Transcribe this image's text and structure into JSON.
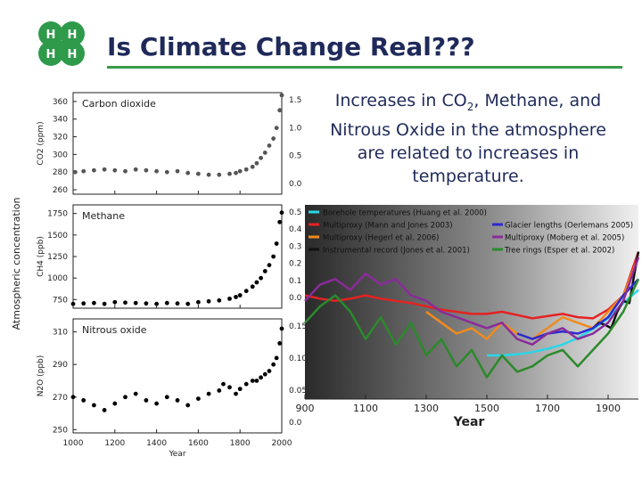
{
  "slide": {
    "title": "Is Climate Change Real???",
    "caption_part1": "Increases in CO",
    "caption_sub": "2",
    "caption_part2": ", Methane, and Nitrous Oxide in the atmosphere are related to increases in temperature."
  },
  "colors": {
    "title": "#1f2a5a",
    "rule": "#3a9a4a",
    "logo": "#2e9a4a"
  },
  "icons": [
    "clover-logo"
  ],
  "chart_data": [
    {
      "type": "scatter",
      "ylabel_shared": "Atmospheric concentration",
      "xlabel": "Year",
      "x_ticks": [
        "1000",
        "1200",
        "1400",
        "1600",
        "1800",
        "2000"
      ],
      "xlim": [
        1000,
        2000
      ],
      "panels": [
        {
          "name": "Carbon dioxide",
          "ylabel": "CO2 (ppm)",
          "ylim": [
            255,
            370
          ],
          "y_ticks": [
            "360",
            "340",
            "320",
            "300",
            "280",
            "260"
          ],
          "right_ticks": [
            "1.5",
            "1.0",
            "0.5",
            "0.0"
          ],
          "x": [
            1010,
            1050,
            1100,
            1150,
            1200,
            1250,
            1300,
            1350,
            1400,
            1450,
            1500,
            1550,
            1600,
            1650,
            1700,
            1750,
            1780,
            1800,
            1830,
            1860,
            1880,
            1900,
            1920,
            1940,
            1960,
            1975,
            1990,
            2000
          ],
          "values": [
            280,
            281,
            282,
            283,
            282,
            281,
            283,
            282,
            281,
            280,
            281,
            279,
            278,
            277,
            277,
            278,
            279,
            281,
            283,
            286,
            290,
            296,
            302,
            310,
            318,
            330,
            350,
            367
          ]
        },
        {
          "name": "Methane",
          "ylabel": "CH4 (ppb)",
          "ylim": [
            650,
            1850
          ],
          "y_ticks": [
            "1750",
            "1500",
            "1250",
            "1000",
            "750"
          ],
          "right_ticks": [
            "0.5",
            "0.4",
            "0.3",
            "0.2",
            "0.1",
            "0.0"
          ],
          "x": [
            1000,
            1050,
            1100,
            1150,
            1200,
            1250,
            1300,
            1350,
            1400,
            1450,
            1500,
            1550,
            1600,
            1650,
            1700,
            1750,
            1780,
            1800,
            1830,
            1860,
            1880,
            1900,
            1920,
            1940,
            1960,
            1975,
            1990,
            2000
          ],
          "values": [
            700,
            705,
            710,
            700,
            720,
            715,
            710,
            705,
            700,
            710,
            705,
            700,
            720,
            730,
            740,
            760,
            780,
            800,
            850,
            900,
            950,
            1000,
            1080,
            1150,
            1250,
            1400,
            1650,
            1760
          ]
        },
        {
          "name": "Nitrous oxide",
          "ylabel": "N2O (ppb)",
          "ylim": [
            248,
            318
          ],
          "y_ticks": [
            "310",
            "290",
            "270",
            "250"
          ],
          "right_ticks": [
            "0.15",
            "0.10",
            "0.05",
            "0.0"
          ],
          "x": [
            1000,
            1050,
            1100,
            1150,
            1200,
            1250,
            1300,
            1350,
            1400,
            1450,
            1500,
            1550,
            1600,
            1650,
            1700,
            1720,
            1750,
            1780,
            1800,
            1830,
            1860,
            1880,
            1900,
            1920,
            1940,
            1960,
            1975,
            1990,
            2000
          ],
          "values": [
            270,
            268,
            265,
            262,
            266,
            270,
            272,
            268,
            266,
            270,
            268,
            265,
            269,
            272,
            274,
            278,
            276,
            272,
            275,
            278,
            280,
            280,
            282,
            284,
            286,
            290,
            294,
            303,
            312
          ]
        }
      ]
    },
    {
      "type": "line",
      "xlabel": "Year",
      "x_ticks": [
        "900",
        "1100",
        "1300",
        "1500",
        "1700",
        "1900"
      ],
      "xlim": [
        900,
        2000
      ],
      "ylim": [
        -1.0,
        0.6
      ],
      "legend_position": "top",
      "series": [
        {
          "name": "Borehole temperatures (Huang et al. 2000)",
          "color": "#29d6e8",
          "x": [
            1500,
            1550,
            1600,
            1650,
            1700,
            1750,
            1800,
            1850,
            1900,
            1950,
            2000
          ],
          "values": [
            -0.6,
            -0.6,
            -0.59,
            -0.57,
            -0.54,
            -0.5,
            -0.44,
            -0.36,
            -0.26,
            -0.12,
            0.0
          ]
        },
        {
          "name": "Multiproxy (Mann and Jones 2003)",
          "color": "#e52222",
          "x": [
            900,
            950,
            1000,
            1050,
            1100,
            1150,
            1200,
            1250,
            1300,
            1350,
            1400,
            1450,
            1500,
            1550,
            1600,
            1650,
            1700,
            1750,
            1800,
            1850,
            1900,
            1950,
            2000
          ],
          "values": [
            -0.05,
            -0.08,
            -0.1,
            -0.08,
            -0.05,
            -0.08,
            -0.1,
            -0.12,
            -0.15,
            -0.18,
            -0.2,
            -0.22,
            -0.22,
            -0.2,
            -0.23,
            -0.26,
            -0.24,
            -0.22,
            -0.25,
            -0.26,
            -0.18,
            -0.05,
            0.35
          ]
        },
        {
          "name": "Multiproxy (Hegerl et al. 2006)",
          "color": "#f08a1e",
          "x": [
            1300,
            1350,
            1400,
            1450,
            1500,
            1550,
            1600,
            1650,
            1700,
            1750,
            1800,
            1850,
            1900,
            1950,
            2000
          ],
          "values": [
            -0.2,
            -0.3,
            -0.4,
            -0.35,
            -0.45,
            -0.3,
            -0.4,
            -0.45,
            -0.35,
            -0.25,
            -0.3,
            -0.35,
            -0.2,
            -0.05,
            0.3
          ]
        },
        {
          "name": "Instrumental record (Jones et al. 2001)",
          "color": "#111111",
          "x": [
            1850,
            1870,
            1890,
            1910,
            1930,
            1950,
            1970,
            1990,
            2000
          ],
          "values": [
            -0.35,
            -0.3,
            -0.32,
            -0.35,
            -0.2,
            -0.1,
            -0.12,
            0.2,
            0.35
          ]
        },
        {
          "name": "Glacier lengths (Oerlemans 2005)",
          "color": "#2b2bd0",
          "x": [
            1600,
            1650,
            1700,
            1750,
            1800,
            1850,
            1900,
            1950,
            2000
          ],
          "values": [
            -0.4,
            -0.45,
            -0.4,
            -0.38,
            -0.4,
            -0.35,
            -0.25,
            -0.05,
            0.1
          ]
        },
        {
          "name": "Multiproxy (Moberg et al. 2005)",
          "color": "#8a2b9a",
          "x": [
            900,
            950,
            1000,
            1050,
            1100,
            1150,
            1200,
            1250,
            1300,
            1350,
            1400,
            1450,
            1500,
            1550,
            1600,
            1650,
            1700,
            1750,
            1800,
            1850,
            1900,
            1950,
            2000
          ],
          "values": [
            -0.1,
            0.05,
            0.1,
            0.0,
            0.15,
            0.05,
            0.1,
            -0.05,
            -0.1,
            -0.2,
            -0.25,
            -0.3,
            -0.35,
            -0.3,
            -0.45,
            -0.5,
            -0.4,
            -0.35,
            -0.45,
            -0.4,
            -0.3,
            -0.1,
            0.3
          ]
        },
        {
          "name": "Tree rings (Esper et al. 2002)",
          "color": "#2b8a2b",
          "x": [
            900,
            950,
            1000,
            1050,
            1100,
            1150,
            1200,
            1250,
            1300,
            1350,
            1400,
            1450,
            1500,
            1550,
            1600,
            1650,
            1700,
            1750,
            1800,
            1850,
            1900,
            1950,
            2000
          ],
          "values": [
            -0.3,
            -0.15,
            -0.05,
            -0.2,
            -0.45,
            -0.25,
            -0.5,
            -0.3,
            -0.6,
            -0.45,
            -0.7,
            -0.55,
            -0.8,
            -0.6,
            -0.75,
            -0.7,
            -0.6,
            -0.55,
            -0.7,
            -0.55,
            -0.4,
            -0.2,
            0.1
          ]
        }
      ]
    }
  ]
}
